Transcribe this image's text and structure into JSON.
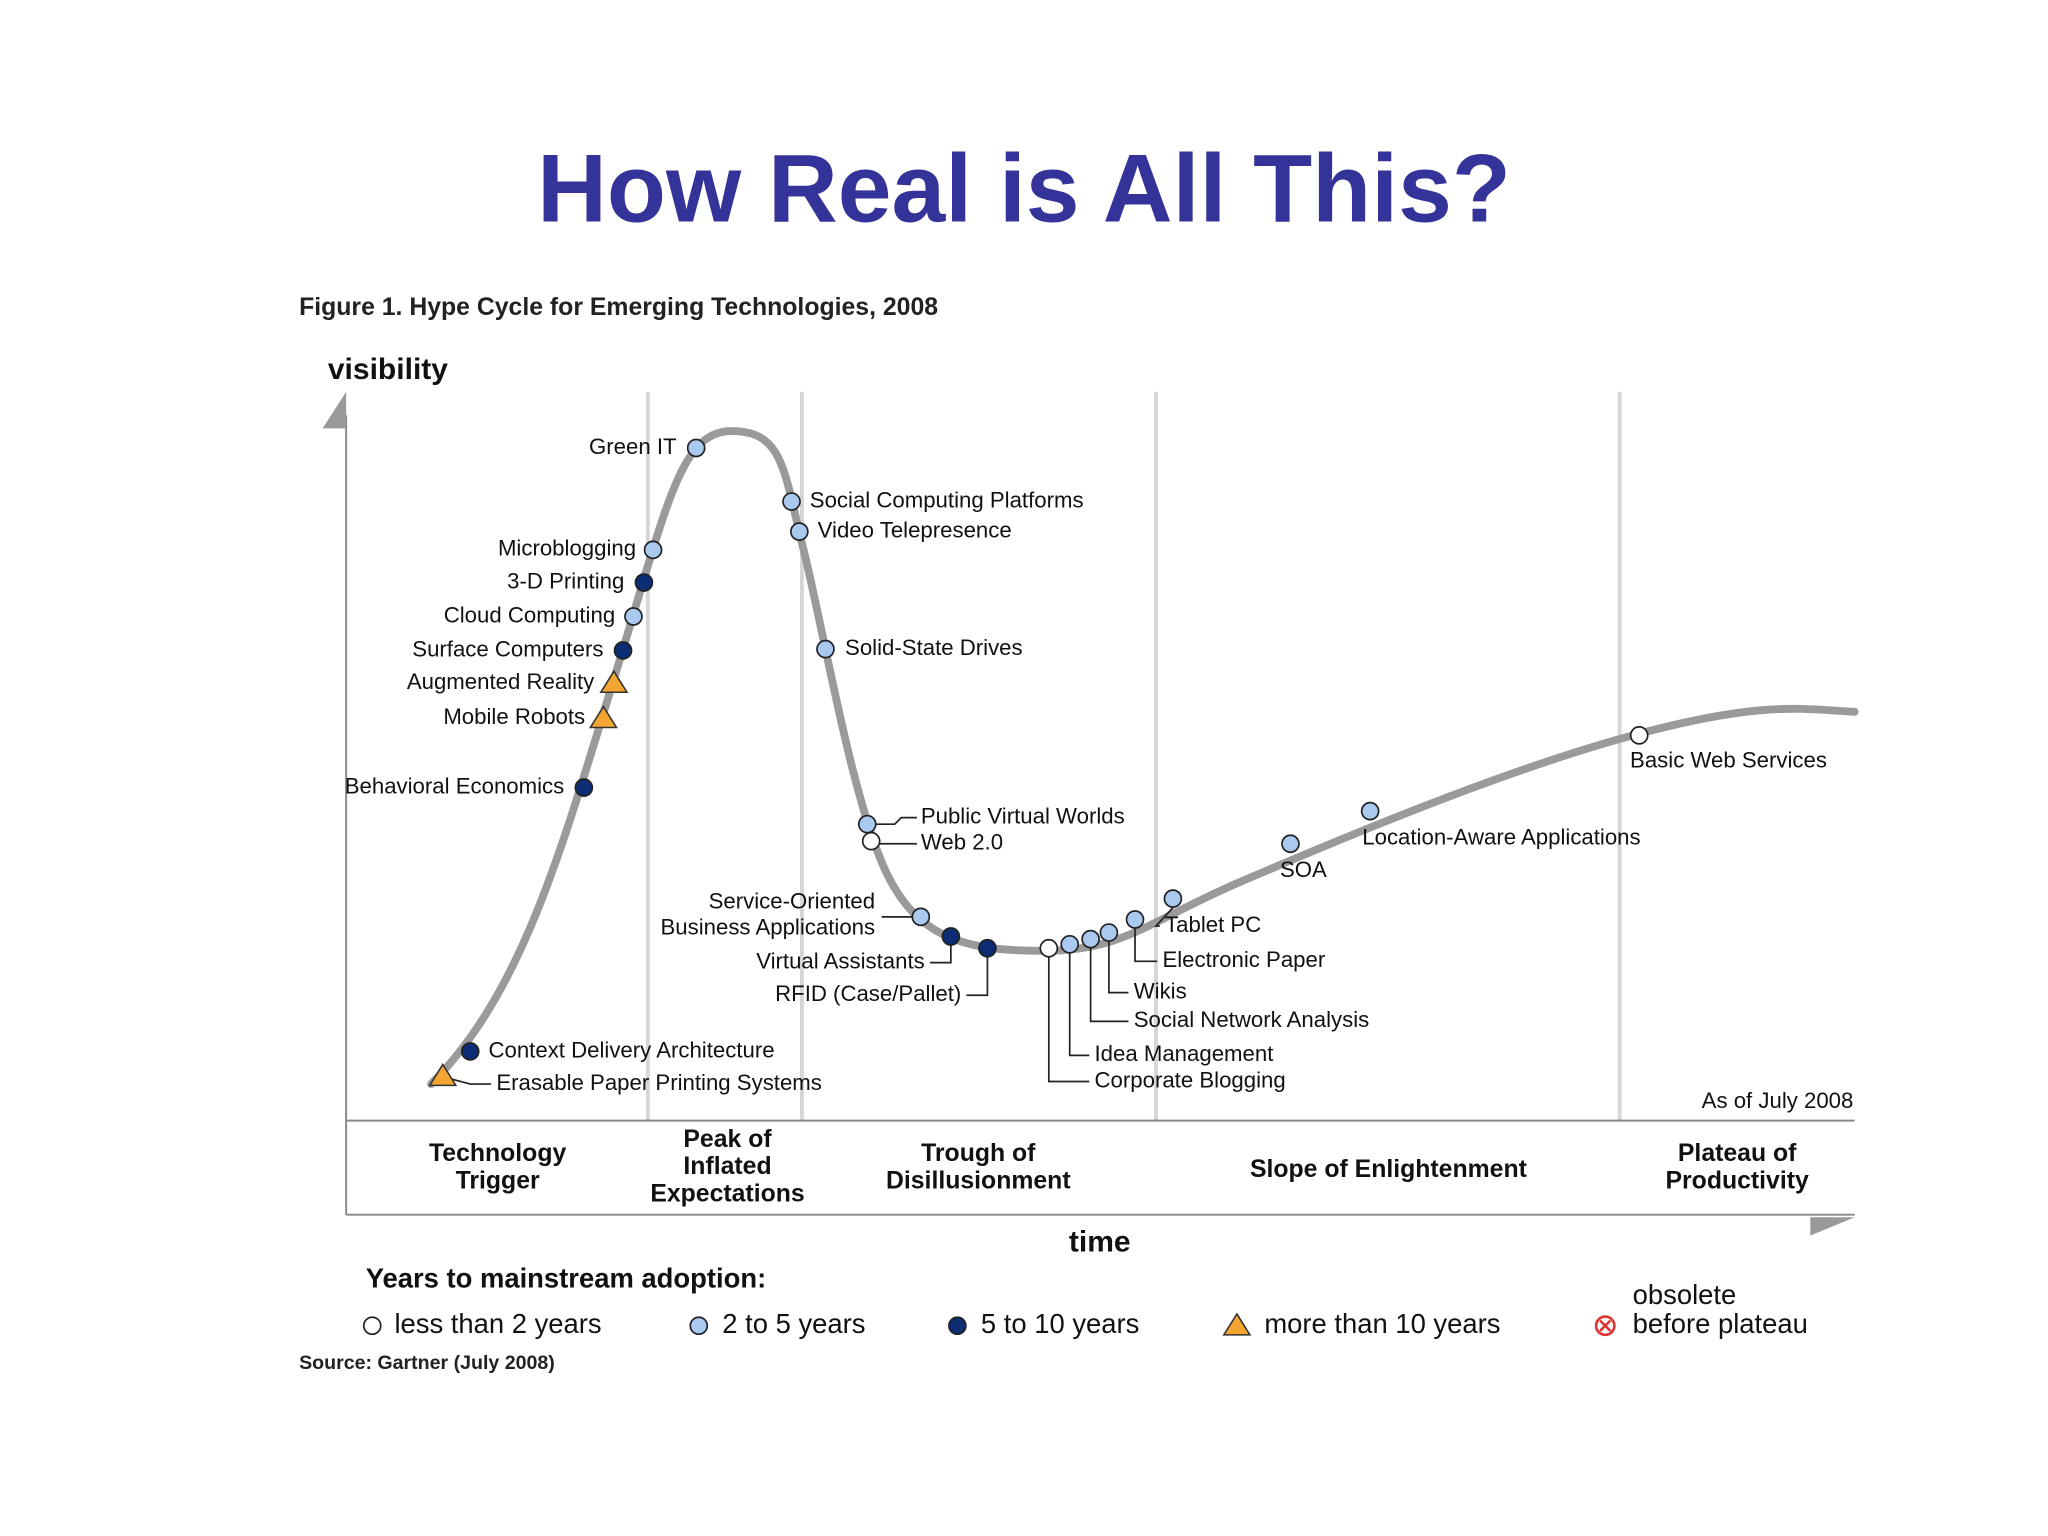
{
  "header": {
    "title": "How Real is All This?"
  },
  "figure": {
    "caption": "Figure 1. Hype Cycle for Emerging Technologies, 2008",
    "y_axis_label": "visibility",
    "x_axis_label": "time",
    "note": "As of July 2008",
    "phases": [
      {
        "lines": [
          "Technology",
          "Trigger"
        ]
      },
      {
        "lines": [
          "Peak of",
          "Inflated",
          "Expectations"
        ]
      },
      {
        "lines": [
          "Trough of",
          "Disillusionment"
        ]
      },
      {
        "lines": [
          "Slope of Enlightenment"
        ]
      },
      {
        "lines": [
          "Plateau of",
          "Productivity"
        ]
      }
    ],
    "technologies": [
      {
        "label": "Green IT",
        "category": "2 to 5 years"
      },
      {
        "label": "Social Computing Platforms",
        "category": "2 to 5 years"
      },
      {
        "label": "Video Telepresence",
        "category": "2 to 5 years"
      },
      {
        "label": "Microblogging",
        "category": "2 to 5 years"
      },
      {
        "label": "3-D Printing",
        "category": "5 to 10 years"
      },
      {
        "label": "Cloud Computing",
        "category": "2 to 5 years"
      },
      {
        "label": "Surface Computers",
        "category": "5 to 10 years"
      },
      {
        "label": "Augmented Reality",
        "category": "more than 10 years"
      },
      {
        "label": "Mobile Robots",
        "category": "more than 10 years"
      },
      {
        "label": "Solid-State Drives",
        "category": "2 to 5 years"
      },
      {
        "label": "Behavioral Economics",
        "category": "5 to 10 years"
      },
      {
        "label": "Public Virtual Worlds",
        "category": "2 to 5 years"
      },
      {
        "label": "Web 2.0",
        "category": "less than 2 years"
      },
      {
        "label": [
          "Service-Oriented",
          "Business Applications"
        ],
        "category": "2 to 5 years"
      },
      {
        "label": "Virtual Assistants",
        "category": "5 to 10 years"
      },
      {
        "label": "RFID (Case/Pallet)",
        "category": "5 to 10 years"
      },
      {
        "label": "Corporate Blogging",
        "category": "less than 2 years"
      },
      {
        "label": "Idea Management",
        "category": "2 to 5 years"
      },
      {
        "label": "Social Network Analysis",
        "category": "2 to 5 years"
      },
      {
        "label": "Wikis",
        "category": "2 to 5 years"
      },
      {
        "label": "Electronic Paper",
        "category": "2 to 5 years"
      },
      {
        "label": "Tablet PC",
        "category": "2 to 5 years"
      },
      {
        "label": "SOA",
        "category": "2 to 5 years"
      },
      {
        "label": "Location-Aware Applications",
        "category": "2 to 5 years"
      },
      {
        "label": "Basic Web Services",
        "category": "less than 2 years"
      },
      {
        "label": "Context Delivery Architecture",
        "category": "5 to 10 years"
      },
      {
        "label": "Erasable Paper Printing Systems",
        "category": "more than 10 years"
      }
    ]
  },
  "legend": {
    "title": "Years to mainstream adoption:",
    "items": [
      {
        "label": "less than 2 years"
      },
      {
        "label": "2 to 5 years"
      },
      {
        "label": "5 to 10 years"
      },
      {
        "label": "more than 10 years"
      },
      {
        "lines": [
          "obsolete",
          "before plateau"
        ]
      }
    ]
  },
  "source": "Source: Gartner (July 2008)"
}
